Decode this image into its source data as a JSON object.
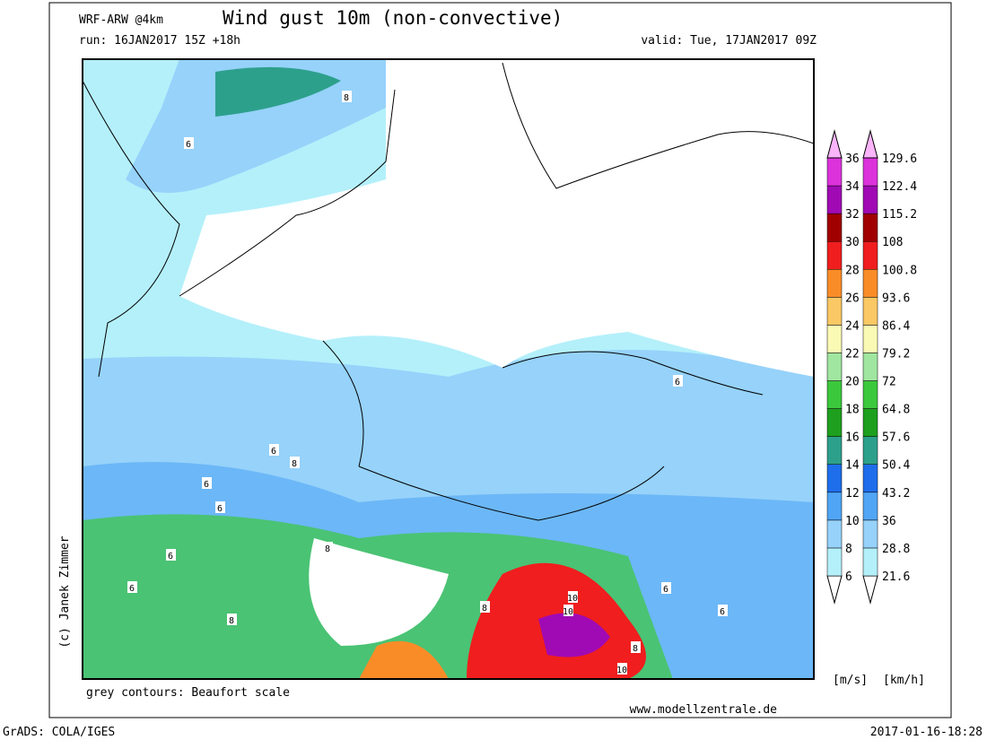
{
  "header": {
    "model": "WRF-ARW @4km",
    "title": "Wind gust 10m (non-convective)",
    "run": "run: 16JAN2017 15Z +18h",
    "valid": "valid: Tue, 17JAN2017 09Z"
  },
  "map": {
    "contour_labels": [
      "8",
      "6",
      "6",
      "8",
      "6",
      "6",
      "6",
      "8",
      "6",
      "8",
      "10",
      "10",
      "8",
      "10",
      "6",
      "6",
      "8",
      "6"
    ]
  },
  "legend": {
    "ms_levels": [
      6,
      8,
      10,
      12,
      14,
      16,
      18,
      20,
      22,
      24,
      26,
      28,
      30,
      32,
      34,
      36
    ],
    "kmh_levels": [
      21.6,
      28.8,
      36,
      43.2,
      50.4,
      57.6,
      64.8,
      72,
      79.2,
      86.4,
      93.6,
      100.8,
      108,
      115.2,
      122.4,
      129.6
    ],
    "colors": [
      "#ffffff",
      "#b4f0fa",
      "#96d2fa",
      "#50a5f5",
      "#1e6eeb",
      "#2da08c",
      "#1ea01e",
      "#3cc83c",
      "#a0e6a0",
      "#fafab4",
      "#fac864",
      "#fa8c28",
      "#f01e1e",
      "#a00000",
      "#a00ab4",
      "#dc32dc",
      "#fab4fa"
    ],
    "unit_ms": "[m/s]",
    "unit_kmh": "[km/h]"
  },
  "credits": {
    "author": "(c) Janek Zimmer",
    "contours": "grey contours: Beaufort scale",
    "site": "www.modellzentrale.de"
  },
  "footer": {
    "left": "GrADS: COLA/IGES",
    "right": "2017-01-16-18:28"
  }
}
